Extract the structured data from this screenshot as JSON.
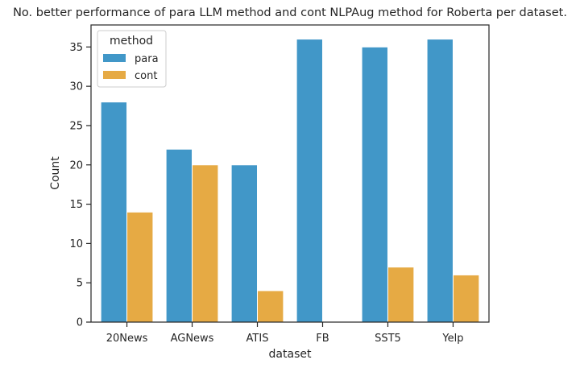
{
  "chart_data": {
    "type": "bar",
    "title": "No. better performance of para LLM method and cont NLPAug method for Roberta per dataset.",
    "xlabel": "dataset",
    "ylabel": "Count",
    "categories": [
      "20News",
      "AGNews",
      "ATIS",
      "FB",
      "SST5",
      "Yelp"
    ],
    "series": [
      {
        "name": "para",
        "values": [
          28,
          22,
          20,
          36,
          35,
          36
        ],
        "color": "#4197C8"
      },
      {
        "name": "cont",
        "values": [
          14,
          20,
          4,
          0,
          7,
          6
        ],
        "color": "#E6AA44"
      }
    ],
    "ylim": [
      0,
      37.8
    ],
    "yticks": [
      0,
      5,
      10,
      15,
      20,
      25,
      30,
      35
    ],
    "grid": false,
    "legend": {
      "title": "method",
      "position": "top-left"
    }
  }
}
